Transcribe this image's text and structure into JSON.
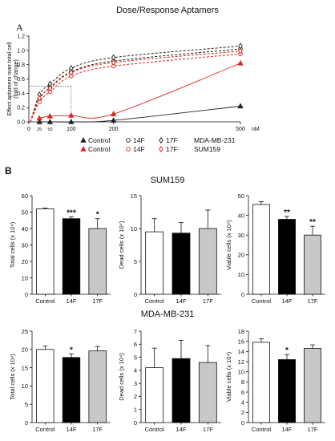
{
  "figure": {
    "title": "Dose/Response Aptamers",
    "panel_a": "A",
    "panel_b": "B"
  },
  "chart_data": [
    {
      "id": "panel-a",
      "type": "line",
      "title": "Dose/Response Aptamers",
      "xlabel": "nM",
      "ylabel": "Effect aptamers over total cell (fold of change)",
      "x_ticks": [
        "0",
        "25",
        "50",
        "100",
        "200",
        "500"
      ],
      "y_ticks": [
        "0.0",
        "0.2",
        "0.4",
        "0.6",
        "0.8",
        "1.0",
        "1.2"
      ],
      "xlim": [
        0,
        500
      ],
      "ylim": [
        0,
        1.2
      ],
      "x": [
        25,
        50,
        100,
        200,
        500
      ],
      "series": [
        {
          "name": "Control",
          "group": "MDA-MB-231",
          "marker": "filled-triangle",
          "color": "#222222",
          "dash": "solid",
          "values": [
            0.0,
            0.0,
            0.0,
            0.02,
            0.22
          ]
        },
        {
          "name": "14F",
          "group": "MDA-MB-231",
          "marker": "open-circle",
          "color": "#222222",
          "dash": "dashed",
          "values": [
            0.32,
            0.48,
            0.7,
            0.85,
            1.02
          ]
        },
        {
          "name": "17F",
          "group": "MDA-MB-231",
          "marker": "open-diamond",
          "color": "#222222",
          "dash": "dashed",
          "values": [
            0.38,
            0.53,
            0.75,
            0.9,
            1.06
          ]
        },
        {
          "name": "Control",
          "group": "SUM159",
          "marker": "filled-triangle",
          "color": "#d9261c",
          "dash": "solid",
          "values": [
            0.05,
            0.08,
            0.09,
            0.11,
            0.82
          ]
        },
        {
          "name": "14F",
          "group": "SUM159",
          "marker": "open-circle",
          "color": "#d9261c",
          "dash": "dashed",
          "values": [
            0.28,
            0.42,
            0.64,
            0.78,
            0.95
          ]
        },
        {
          "name": "17F",
          "group": "SUM159",
          "marker": "open-diamond",
          "color": "#d9261c",
          "dash": "dashed",
          "values": [
            0.33,
            0.47,
            0.69,
            0.83,
            0.99
          ]
        }
      ],
      "reference_lines": {
        "y": 0.5,
        "x": 100
      },
      "legend": {
        "rows": [
          {
            "items": [
              "Control",
              "14F",
              "17F"
            ],
            "group": "MDA-MB-231",
            "color": "#222222"
          },
          {
            "items": [
              "Control",
              "14F",
              "17F"
            ],
            "group": "SUM159",
            "color": "#d9261c"
          }
        ]
      }
    },
    {
      "id": "sum159-total",
      "type": "bar",
      "group_title": "SUM159",
      "categories": [
        "Control",
        "14F",
        "17F"
      ],
      "values": [
        52,
        46,
        40
      ],
      "errors": [
        0.5,
        1.0,
        6.0
      ],
      "significance": [
        "",
        "***",
        "*"
      ],
      "ylabel": "Total cells (x 10⁴)",
      "ylim": [
        0,
        60
      ],
      "y_ticks": [
        0,
        10,
        20,
        30,
        40,
        50,
        60
      ]
    },
    {
      "id": "sum159-dead",
      "type": "bar",
      "categories": [
        "Control",
        "14F",
        "17F"
      ],
      "values": [
        9.5,
        9.3,
        10
      ],
      "errors": [
        2.0,
        1.6,
        2.8
      ],
      "significance": [
        "",
        "",
        ""
      ],
      "ylabel": "Dead cells (x 10⁴)",
      "ylim": [
        0,
        15
      ],
      "y_ticks": [
        0,
        5,
        10,
        15
      ]
    },
    {
      "id": "sum159-viable",
      "type": "bar",
      "categories": [
        "Control",
        "14F",
        "17F"
      ],
      "values": [
        45.5,
        38,
        30
      ],
      "errors": [
        1.5,
        1.5,
        4.5
      ],
      "significance": [
        "",
        "**",
        "**"
      ],
      "ylabel": "Viable cells (x 10⁴)",
      "ylim": [
        0,
        50
      ],
      "y_ticks": [
        0,
        10,
        20,
        30,
        40,
        50
      ]
    },
    {
      "id": "mda-total",
      "type": "bar",
      "group_title": "MDA-MB-231",
      "categories": [
        "Control",
        "14F",
        "17F"
      ],
      "values": [
        20,
        17.8,
        19.6
      ],
      "errors": [
        0.9,
        1.0,
        1.2
      ],
      "significance": [
        "",
        "*",
        ""
      ],
      "ylabel": "Total cells (x 10⁴)",
      "ylim": [
        0,
        25
      ],
      "y_ticks": [
        0,
        5,
        10,
        15,
        20,
        25
      ]
    },
    {
      "id": "mda-dead",
      "type": "bar",
      "categories": [
        "Control",
        "14F",
        "17F"
      ],
      "values": [
        4.2,
        4.9,
        4.6
      ],
      "errors": [
        1.5,
        1.4,
        1.3
      ],
      "significance": [
        "",
        "",
        ""
      ],
      "ylabel": "Dead cells (x 10⁴)",
      "ylim": [
        0,
        7
      ],
      "y_ticks": [
        0,
        1,
        2,
        3,
        4,
        5,
        6,
        7
      ]
    },
    {
      "id": "mda-viable",
      "type": "bar",
      "categories": [
        "Control",
        "14F",
        "17F"
      ],
      "values": [
        15.8,
        12.4,
        14.6
      ],
      "errors": [
        0.7,
        1.0,
        0.7
      ],
      "significance": [
        "",
        "*",
        ""
      ],
      "ylabel": "Viable cells (x 10⁴)",
      "ylim": [
        0,
        18
      ],
      "y_ticks": [
        0,
        2,
        4,
        6,
        8,
        10,
        12,
        14,
        16,
        18
      ]
    }
  ],
  "bar_colors": [
    "#ffffff",
    "#000000",
    "#c8c8c8"
  ]
}
